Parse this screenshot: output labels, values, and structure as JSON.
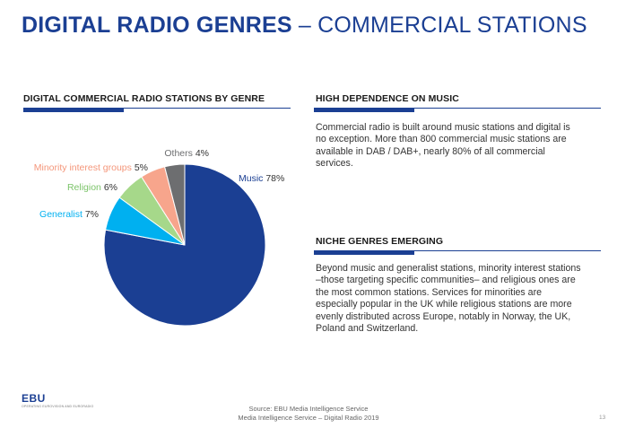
{
  "title": {
    "bold": "DIGITAL RADIO GENRES",
    "light": " – COMMERCIAL STATIONS"
  },
  "chart_section": {
    "heading": "DIGITAL COMMERCIAL RADIO STATIONS BY GENRE"
  },
  "right_sections": [
    {
      "heading": "HIGH DEPENDENCE ON MUSIC",
      "text": "Commercial radio is built around music stations and digital is no exception. More than 800 commercial music stations are available in DAB / DAB+, nearly 80% of all commercial services."
    },
    {
      "heading": "NICHE GENRES EMERGING",
      "text": "Beyond music and generalist stations, minority interest stations –those targeting specific communities– and religious ones are the most common stations. Services for minorities are especially popular in the UK while religious stations are more evenly distributed across Europe, notably in Norway, the UK, Poland and Switzerland."
    }
  ],
  "chart_data": {
    "type": "pie",
    "title": "DIGITAL COMMERCIAL RADIO STATIONS BY GENRE",
    "unit": "%",
    "slices": [
      {
        "name": "Music",
        "value": 78,
        "label": "78%",
        "color": "#1b3f93",
        "label_color": "#1b3f93"
      },
      {
        "name": "Generalist",
        "value": 7,
        "label": "7%",
        "color": "#00b0f0",
        "label_color": "#00b0f0"
      },
      {
        "name": "Religion",
        "value": 6,
        "label": "6%",
        "color": "#a6d88a",
        "label_color": "#7cc46a"
      },
      {
        "name": "Minority interest groups",
        "value": 5,
        "label": "5%",
        "color": "#f7a58c",
        "label_color": "#f4967a"
      },
      {
        "name": "Others",
        "value": 4,
        "label": "4%",
        "color": "#6d6e70",
        "label_color": "#6d6e70"
      }
    ],
    "legend": "none"
  },
  "logo": {
    "name": "EBU",
    "tagline": "OPERATING EUROVISION AND EURORADIO"
  },
  "footer": {
    "line1": "Source: EBU Media Intelligence Service",
    "line2": "Media Intelligence Service – Digital Radio 2019",
    "page": "13"
  }
}
